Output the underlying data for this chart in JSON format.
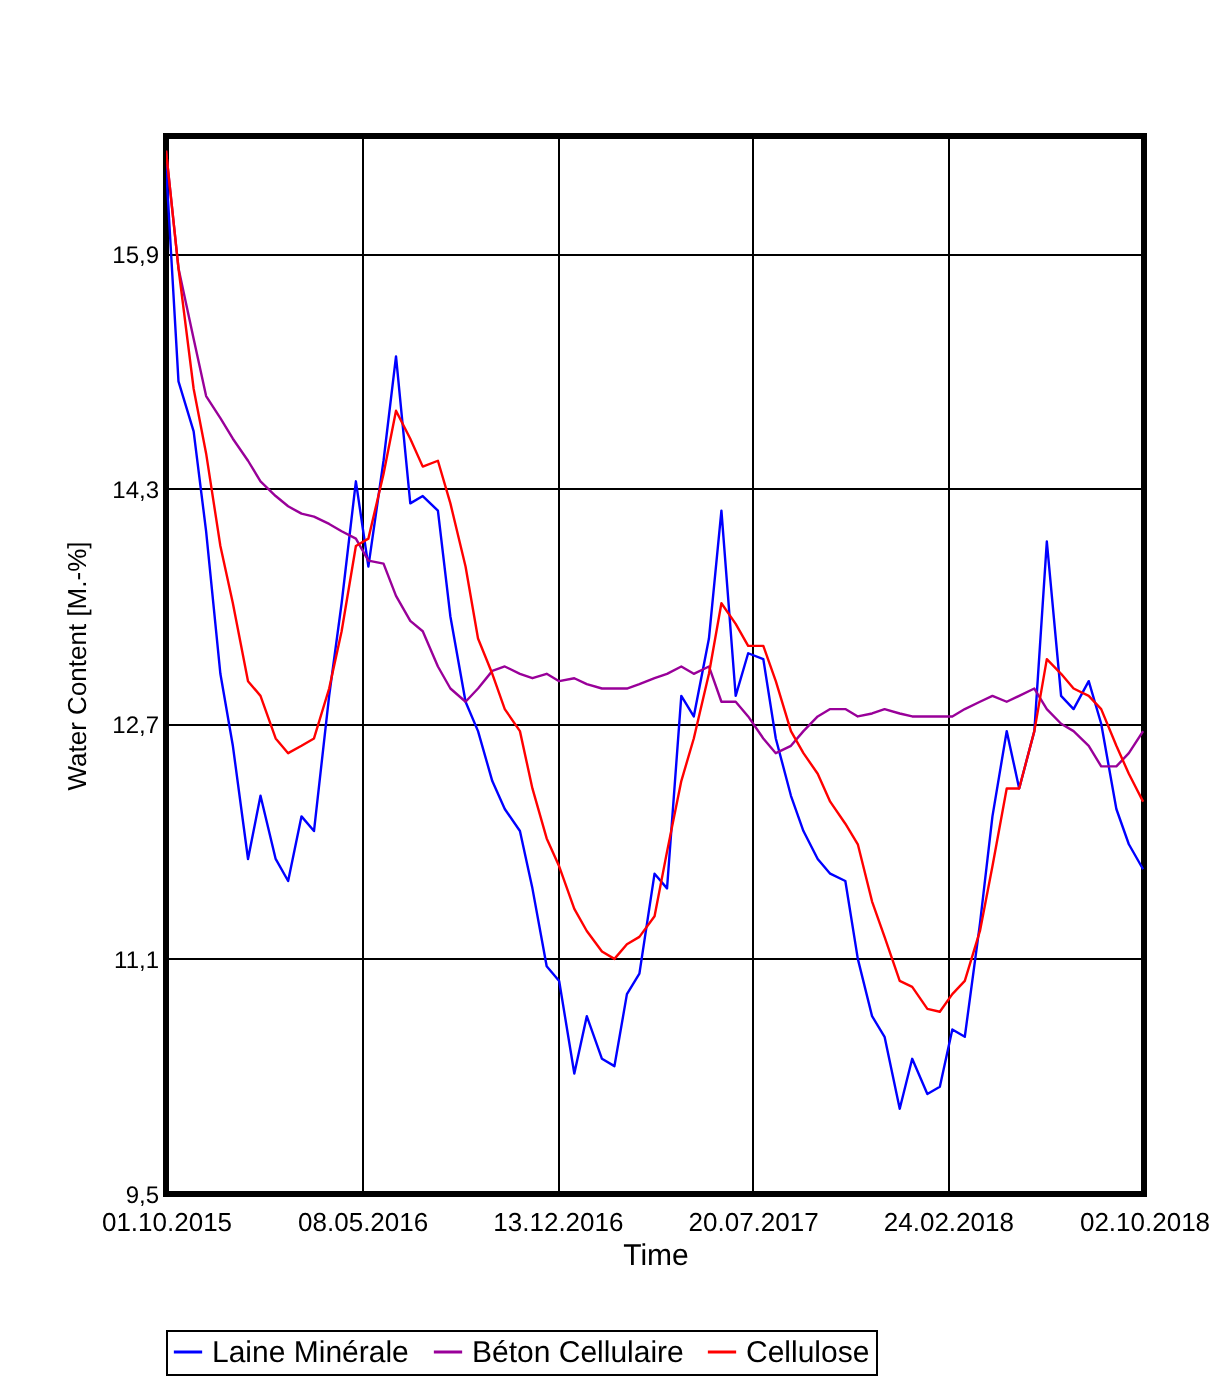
{
  "chart_data": {
    "type": "line",
    "xlabel": "Time",
    "ylabel": "Water Content [M.-%]",
    "x": [
      "2015-10-01",
      "2015-10-15",
      "2015-11-01",
      "2015-11-15",
      "2015-12-01",
      "2015-12-15",
      "2016-01-01",
      "2016-01-15",
      "2016-02-01",
      "2016-02-15",
      "2016-03-01",
      "2016-03-15",
      "2016-04-01",
      "2016-04-15",
      "2016-05-01",
      "2016-05-15",
      "2016-06-01",
      "2016-06-15",
      "2016-07-01",
      "2016-07-15",
      "2016-08-01",
      "2016-08-15",
      "2016-09-01",
      "2016-09-15",
      "2016-10-01",
      "2016-10-15",
      "2016-11-01",
      "2016-11-15",
      "2016-12-01",
      "2016-12-15",
      "2017-01-01",
      "2017-01-15",
      "2017-02-01",
      "2017-02-15",
      "2017-03-01",
      "2017-03-15",
      "2017-04-01",
      "2017-04-15",
      "2017-05-01",
      "2017-05-15",
      "2017-06-01",
      "2017-06-15",
      "2017-07-01",
      "2017-07-15",
      "2017-08-01",
      "2017-08-15",
      "2017-09-01",
      "2017-09-15",
      "2017-10-01",
      "2017-10-15",
      "2017-11-01",
      "2017-11-15",
      "2017-12-01",
      "2017-12-15",
      "2018-01-01",
      "2018-01-15",
      "2018-02-01",
      "2018-02-15",
      "2018-03-01",
      "2018-03-15",
      "2018-04-01",
      "2018-04-15",
      "2018-05-01",
      "2018-05-15",
      "2018-06-01",
      "2018-06-15",
      "2018-07-01",
      "2018-07-15",
      "2018-08-01",
      "2018-08-15",
      "2018-09-01",
      "2018-09-15",
      "2018-10-01"
    ],
    "series": [
      {
        "name": "Laine Minérale",
        "color": "#0000ff",
        "values": [
          16.5,
          15.03,
          14.69,
          14.01,
          13.04,
          12.55,
          11.78,
          12.21,
          11.78,
          11.63,
          12.07,
          11.97,
          12.89,
          13.52,
          14.35,
          13.77,
          14.49,
          15.2,
          14.2,
          14.25,
          14.15,
          13.43,
          12.85,
          12.65,
          12.31,
          12.12,
          11.97,
          11.58,
          11.05,
          10.95,
          10.32,
          10.71,
          10.42,
          10.37,
          10.86,
          11.0,
          11.68,
          11.58,
          12.89,
          12.75,
          13.28,
          14.15,
          12.89,
          13.18,
          13.14,
          12.6,
          12.21,
          11.97,
          11.78,
          11.68,
          11.63,
          11.1,
          10.71,
          10.57,
          10.08,
          10.42,
          10.18,
          10.23,
          10.62,
          10.57,
          11.34,
          12.07,
          12.65,
          12.26,
          12.65,
          13.94,
          12.89,
          12.8,
          12.99,
          12.7,
          12.12,
          11.88,
          11.71
        ]
      },
      {
        "name": "Béton Cellulaire",
        "color": "#990099",
        "values": [
          16.6,
          15.8,
          15.32,
          14.93,
          14.78,
          14.64,
          14.49,
          14.35,
          14.25,
          14.18,
          14.13,
          14.11,
          14.06,
          14.01,
          13.96,
          13.81,
          13.79,
          13.57,
          13.4,
          13.33,
          13.09,
          12.94,
          12.85,
          12.94,
          13.06,
          13.09,
          13.04,
          13.01,
          13.04,
          12.99,
          13.01,
          12.97,
          12.94,
          12.94,
          12.94,
          12.97,
          13.01,
          13.04,
          13.09,
          13.04,
          13.09,
          12.85,
          12.85,
          12.75,
          12.6,
          12.5,
          12.55,
          12.65,
          12.75,
          12.8,
          12.8,
          12.75,
          12.77,
          12.8,
          12.77,
          12.75,
          12.75,
          12.75,
          12.75,
          12.8,
          12.85,
          12.89,
          12.85,
          12.89,
          12.94,
          12.8,
          12.7,
          12.65,
          12.55,
          12.41,
          12.41,
          12.5,
          12.65
        ]
      },
      {
        "name": "Cellulose",
        "color": "#ff0000",
        "values": [
          16.6,
          15.8,
          14.98,
          14.54,
          13.91,
          13.52,
          12.99,
          12.89,
          12.6,
          12.5,
          12.55,
          12.6,
          12.94,
          13.33,
          13.91,
          13.96,
          14.4,
          14.83,
          14.64,
          14.45,
          14.49,
          14.2,
          13.77,
          13.28,
          13.04,
          12.8,
          12.65,
          12.26,
          11.92,
          11.73,
          11.44,
          11.29,
          11.15,
          11.1,
          11.2,
          11.25,
          11.39,
          11.83,
          12.31,
          12.6,
          13.04,
          13.52,
          13.38,
          13.23,
          13.23,
          12.99,
          12.65,
          12.5,
          12.36,
          12.17,
          12.02,
          11.88,
          11.49,
          11.25,
          10.95,
          10.91,
          10.76,
          10.74,
          10.86,
          10.95,
          11.29,
          11.73,
          12.26,
          12.26,
          12.65,
          13.14,
          13.04,
          12.94,
          12.89,
          12.8,
          12.55,
          12.36,
          12.17
        ]
      }
    ],
    "xlim": [
      "2015-10-01",
      "2018-10-02"
    ],
    "xticks": [
      {
        "value": "2015-10-01",
        "label": "01.10.2015"
      },
      {
        "value": "2016-05-08",
        "label": "08.05.2016"
      },
      {
        "value": "2016-12-13",
        "label": "13.12.2016"
      },
      {
        "value": "2017-07-20",
        "label": "20.07.2017"
      },
      {
        "value": "2018-02-24",
        "label": "24.02.2018"
      },
      {
        "value": "2018-10-02",
        "label": "02.10.2018"
      }
    ],
    "ylim": [
      9.5,
      16.7
    ],
    "yticks": [
      {
        "value": 9.5,
        "label": "9,5"
      },
      {
        "value": 11.1,
        "label": "11,1"
      },
      {
        "value": 12.7,
        "label": "12,7"
      },
      {
        "value": 14.3,
        "label": "14,3"
      },
      {
        "value": 15.9,
        "label": "15,9"
      }
    ],
    "grid": true,
    "legend": "bottom",
    "line_style": "solid",
    "marker": "none"
  }
}
